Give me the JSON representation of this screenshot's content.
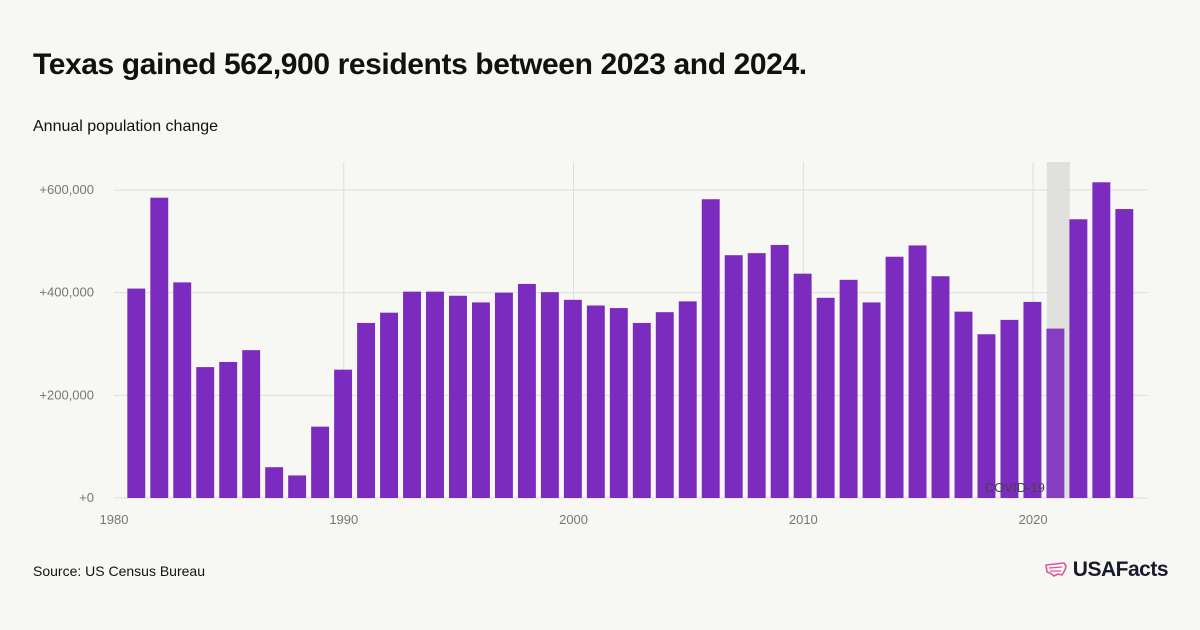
{
  "header": {
    "title": "Texas gained 562,900 residents between 2023 and 2024.",
    "subtitle": "Annual population change"
  },
  "footer": {
    "source": "Source: US Census Bureau",
    "logo_text": "USAFacts"
  },
  "colors": {
    "bar": "#7b2cbf",
    "highlight_band": "#dcdcd8",
    "gridline": "#dedede",
    "background": "#f7f7f3"
  },
  "chart_data": {
    "type": "bar",
    "title": "Texas gained 562,900 residents between 2023 and 2024.",
    "subtitle": "Annual population change",
    "xlabel": "",
    "ylabel": "",
    "x": [
      1981,
      1982,
      1983,
      1984,
      1985,
      1986,
      1987,
      1988,
      1989,
      1990,
      1991,
      1992,
      1993,
      1994,
      1995,
      1996,
      1997,
      1998,
      1999,
      2000,
      2001,
      2002,
      2003,
      2004,
      2005,
      2006,
      2007,
      2008,
      2009,
      2010,
      2011,
      2012,
      2013,
      2014,
      2015,
      2016,
      2017,
      2018,
      2019,
      2020,
      2021,
      2022,
      2023,
      2024
    ],
    "values": [
      408000,
      585000,
      420000,
      255000,
      265000,
      288000,
      60000,
      44000,
      139000,
      250000,
      341000,
      361000,
      402000,
      402000,
      394000,
      381000,
      400000,
      417000,
      401000,
      386000,
      375000,
      370000,
      341000,
      362000,
      383000,
      582000,
      473000,
      477000,
      493000,
      437000,
      390000,
      425000,
      381000,
      470000,
      492000,
      432000,
      363000,
      319000,
      347000,
      382000,
      330000,
      543000,
      615000,
      562900
    ],
    "xlim": [
      1980,
      2025
    ],
    "ylim": [
      0,
      650000
    ],
    "x_ticks": [
      1980,
      1990,
      2000,
      2010,
      2020
    ],
    "x_tick_labels": [
      "1980",
      "1990",
      "2000",
      "2010",
      "2020"
    ],
    "y_ticks": [
      0,
      200000,
      400000,
      600000
    ],
    "y_tick_labels": [
      "+0",
      "+200,000",
      "+400,000",
      "+600,000"
    ],
    "highlight": {
      "x_start": 2020.6,
      "x_end": 2021.6,
      "label": "COVID-19"
    },
    "grid": true,
    "legend": "none"
  }
}
